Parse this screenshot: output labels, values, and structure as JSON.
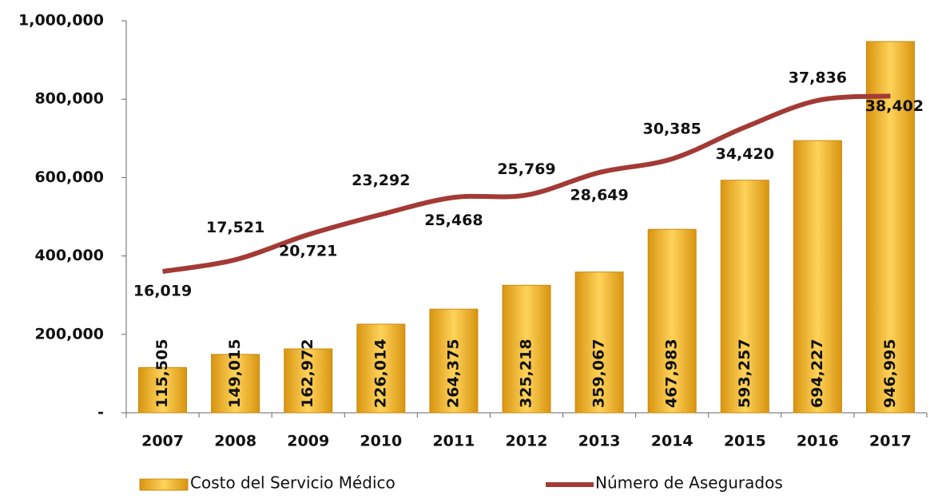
{
  "chart_data": {
    "type": "bar-line",
    "categories": [
      "2007",
      "2008",
      "2009",
      "2010",
      "2011",
      "2012",
      "2013",
      "2014",
      "2015",
      "2016",
      "2017"
    ],
    "ylim": [
      0,
      1000000
    ],
    "yticks": [
      {
        "value": 0,
        "label": "-"
      },
      {
        "value": 200000,
        "label": "200,000"
      },
      {
        "value": 400000,
        "label": "400,000"
      },
      {
        "value": 600000,
        "label": "600,000"
      },
      {
        "value": 800000,
        "label": "800,000"
      },
      {
        "value": 1000000,
        "label": "1,000,000"
      }
    ],
    "y2lim": [
      -2000,
      48000
    ],
    "series": [
      {
        "name": "Costo del Servicio Médico",
        "type": "bar",
        "color": "#f0b020",
        "values": [
          115505,
          149015,
          162972,
          226014,
          264375,
          325218,
          359067,
          467983,
          593257,
          694227,
          946995
        ],
        "value_labels": [
          "115,505",
          "149,015",
          "162,972",
          "226,014",
          "264,375",
          "325,218",
          "359,067",
          "467,983",
          "593,257",
          "694,227",
          "946,995"
        ]
      },
      {
        "name": "Número de Asegurados",
        "type": "line",
        "axis": "y2",
        "color": "#a33a35",
        "values": [
          16019,
          17521,
          20721,
          23292,
          25468,
          25769,
          28649,
          30385,
          34420,
          37836,
          38402
        ],
        "value_labels": [
          "16,019",
          "17,521",
          "20,721",
          "23,292",
          "25,468",
          "25,769",
          "28,649",
          "30,385",
          "34,420",
          "37,836",
          "38,402"
        ]
      }
    ]
  }
}
